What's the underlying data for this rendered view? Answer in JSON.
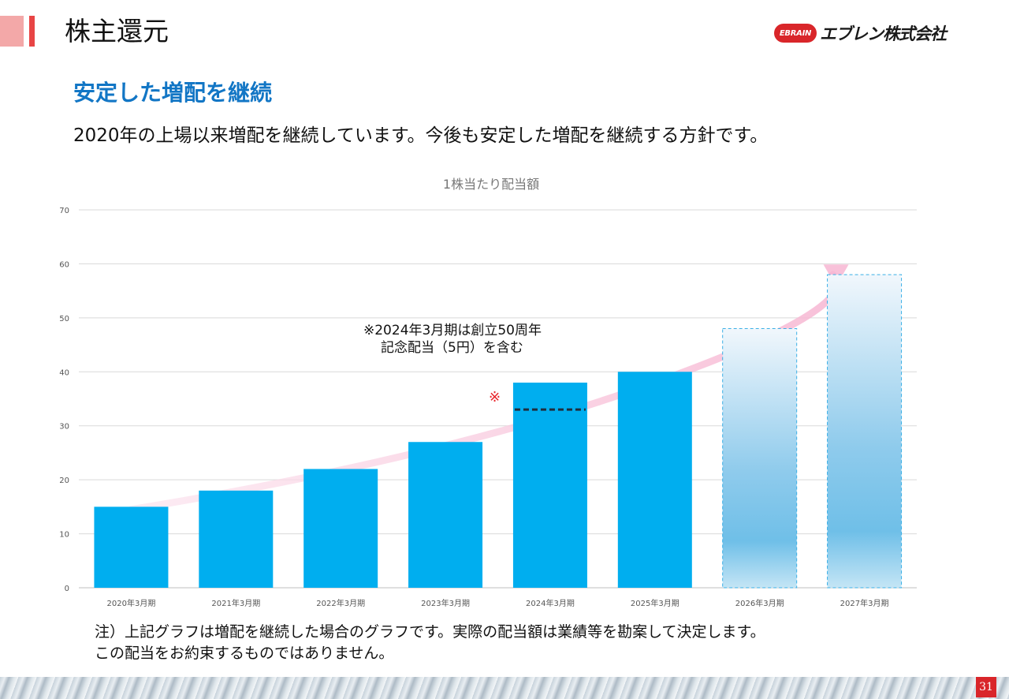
{
  "header": {
    "title": "株主還元",
    "logo_badge": "EBRAIN",
    "logo_text": "エブレン株式会社"
  },
  "subtitle": "安定した増配を継続",
  "lead": "2020年の上場以来増配を継続しています。今後も安定した増配を継続する方針です。",
  "chart_data": {
    "type": "bar",
    "title": "1株当たり配当額",
    "categories": [
      "2020年3月期",
      "2021年3月期",
      "2022年3月期",
      "2023年3月期",
      "2024年3月期",
      "2025年3月期",
      "2026年3月期",
      "2027年3月期"
    ],
    "values": [
      15,
      18,
      22,
      27,
      38,
      40,
      48,
      58
    ],
    "projected": [
      false,
      false,
      false,
      false,
      false,
      false,
      true,
      true
    ],
    "ylim": [
      0,
      70
    ],
    "yticks": [
      0,
      10,
      20,
      30,
      40,
      50,
      60,
      70
    ],
    "grid": true,
    "memorial_baseline": {
      "category": "2024年3月期",
      "value": 33
    },
    "annotation": {
      "mark": "※",
      "line1": "※2024年3月期は創立50周年",
      "line2": "記念配当（5円）を含む"
    },
    "colors": {
      "bar": "#00aeef",
      "projected_border": "#3bb0e6",
      "grid": "#d9d9d9",
      "trend": "#f9c6dc",
      "annotation_mark": "#e8242b"
    }
  },
  "note": {
    "line1": "注）上記グラフは増配を継続した場合のグラフです。実際の配当額は業績等を勘案して決定します。",
    "line2": "この配当をお約束するものではありません。"
  },
  "page_number": "31"
}
